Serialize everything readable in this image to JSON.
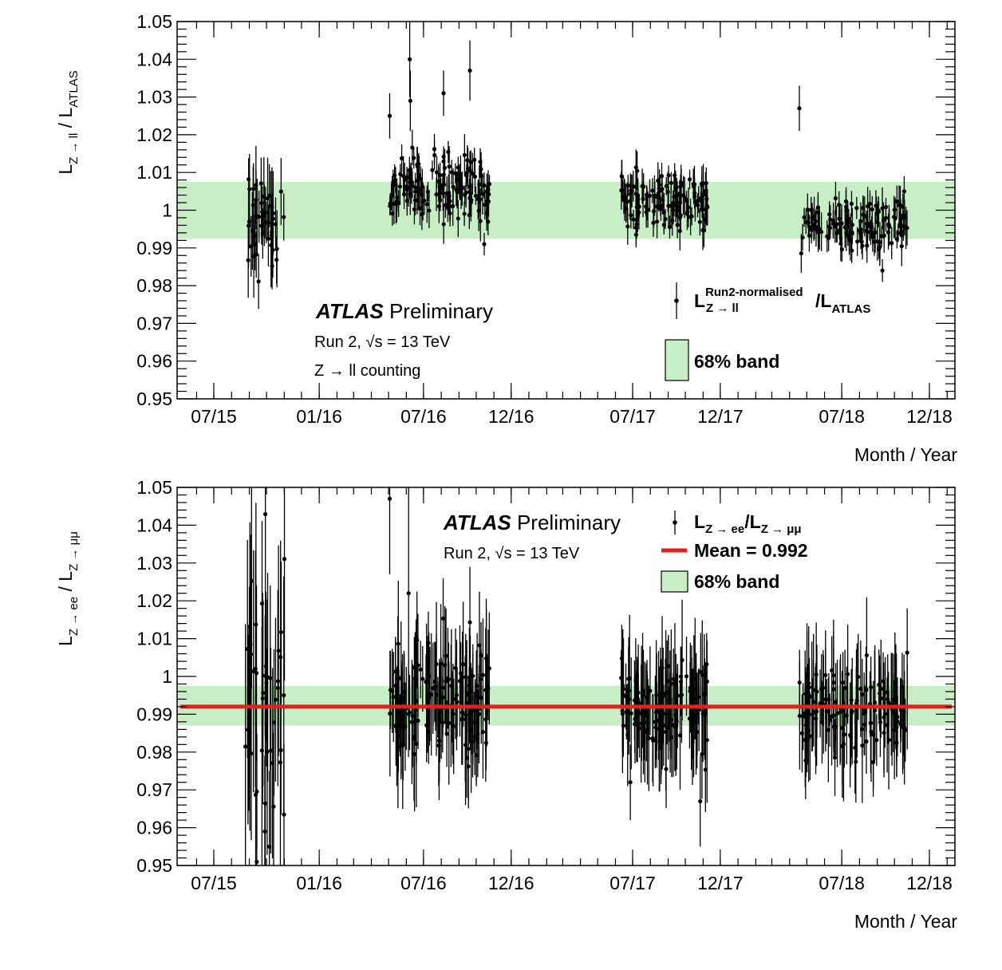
{
  "chart_data": [
    {
      "type": "scatter",
      "panel": "top",
      "ylabel": "L_{Z→ll} / L_{ATLAS}",
      "ylabel_parts": {
        "main": "L",
        "sub1": "Z → ll",
        "sep": " / L",
        "sub2": "ATLAS"
      },
      "xlabel": "Month / Year",
      "ylim": [
        0.95,
        1.05
      ],
      "yticks": [
        "0.95",
        "0.96",
        "0.97",
        "0.98",
        "0.99",
        "1",
        "1.01",
        "1.02",
        "1.03",
        "1.04",
        "1.05"
      ],
      "xticks": [
        "07/15",
        "01/16",
        "07/16",
        "12/16",
        "07/17",
        "12/17",
        "07/18",
        "12/18"
      ],
      "band": [
        0.9925,
        1.0075
      ],
      "band_color": "#c7eec5",
      "mean": null,
      "atlas_label": "ATLAS",
      "prelim_label": "Preliminary",
      "energy_label": "Run 2, √s = 13 TeV",
      "extra_label": "Z → ll counting",
      "legend": {
        "points": {
          "main": "L",
          "sup": "Run2-normalised",
          "sub": "Z → ll",
          "rest": "/L",
          "sub2": "ATLAS"
        },
        "band": "68% band"
      },
      "series": [
        {
          "clusters": [
            {
              "start": "2015-08-24",
              "end": "2015-11-02",
              "n": 45,
              "mean": 0.998,
              "spread": 0.007,
              "err": 0.008
            },
            {
              "start": "2016-05-03",
              "end": "2016-10-26",
              "n": 150,
              "mean": 1.006,
              "spread": 0.004,
              "err": 0.004
            },
            {
              "start": "2017-06-10",
              "end": "2017-11-12",
              "n": 130,
              "mean": 1.002,
              "spread": 0.0035,
              "err": 0.004
            },
            {
              "start": "2018-04-18",
              "end": "2018-10-24",
              "n": 130,
              "mean": 0.996,
              "spread": 0.0035,
              "err": 0.004
            }
          ],
          "highlights": [
            {
              "x": "2016-05-03",
              "y": 1.025,
              "err": 0.006
            },
            {
              "x": "2016-06-07",
              "y": 1.04,
              "err": 0.01
            },
            {
              "x": "2016-06-08",
              "y": 1.029,
              "err": 0.008
            },
            {
              "x": "2016-08-05",
              "y": 1.031,
              "err": 0.006
            },
            {
              "x": "2016-09-20",
              "y": 1.037,
              "err": 0.008
            },
            {
              "x": "2016-10-15",
              "y": 0.991,
              "err": 0.003
            },
            {
              "x": "2018-04-18",
              "y": 1.027,
              "err": 0.006
            },
            {
              "x": "2018-10-18",
              "y": 1.005,
              "err": 0.004
            },
            {
              "x": "2018-09-10",
              "y": 0.984,
              "err": 0.003
            }
          ]
        }
      ]
    },
    {
      "type": "scatter",
      "panel": "bottom",
      "ylabel": "L_{Z→ee} / L_{Z→μμ}",
      "ylabel_parts": {
        "main": "L",
        "sub1": "Z → ee",
        "sep": " / L",
        "sub2": "Z → μμ"
      },
      "xlabel": "Month / Year",
      "ylim": [
        0.95,
        1.05
      ],
      "yticks": [
        "0.95",
        "0.96",
        "0.97",
        "0.98",
        "0.99",
        "1",
        "1.01",
        "1.02",
        "1.03",
        "1.04",
        "1.05"
      ],
      "xticks": [
        "07/15",
        "01/16",
        "07/16",
        "12/16",
        "07/17",
        "12/17",
        "07/18",
        "12/18"
      ],
      "band": [
        0.987,
        0.9975
      ],
      "band_color": "#c7eec5",
      "mean": 0.992,
      "mean_color": "#e3201c",
      "atlas_label": "ATLAS",
      "prelim_label": "Preliminary",
      "energy_label": "Run 2, √s = 13 TeV",
      "extra_label": "",
      "legend": {
        "points": {
          "main": "L",
          "sub": "Z → ee",
          "rest": "/L",
          "sub2": "Z → μμ"
        },
        "mean": "Mean = 0.992",
        "band": "68% band"
      },
      "series": [
        {
          "clusters": [
            {
              "start": "2015-08-24",
              "end": "2015-11-02",
              "n": 45,
              "mean": 0.993,
              "spread": 0.02,
              "err": 0.025
            },
            {
              "start": "2016-05-03",
              "end": "2016-10-26",
              "n": 150,
              "mean": 0.993,
              "spread": 0.008,
              "err": 0.012
            },
            {
              "start": "2017-06-10",
              "end": "2017-11-12",
              "n": 130,
              "mean": 0.992,
              "spread": 0.006,
              "err": 0.012
            },
            {
              "start": "2018-04-18",
              "end": "2018-10-24",
              "n": 130,
              "mean": 0.992,
              "spread": 0.006,
              "err": 0.011
            }
          ],
          "highlights": [
            {
              "x": "2016-05-03",
              "y": 1.047,
              "err": 0.02
            },
            {
              "x": "2016-06-05",
              "y": 1.022,
              "err": 0.03
            },
            {
              "x": "2017-10-27",
              "y": 0.967,
              "err": 0.012
            },
            {
              "x": "2017-06-27",
              "y": 0.972,
              "err": 0.01
            },
            {
              "x": "2015-10-06",
              "y": 0.955,
              "err": 0.02
            },
            {
              "x": "2015-09-28",
              "y": 0.959,
              "err": 0.02
            }
          ]
        }
      ]
    }
  ]
}
